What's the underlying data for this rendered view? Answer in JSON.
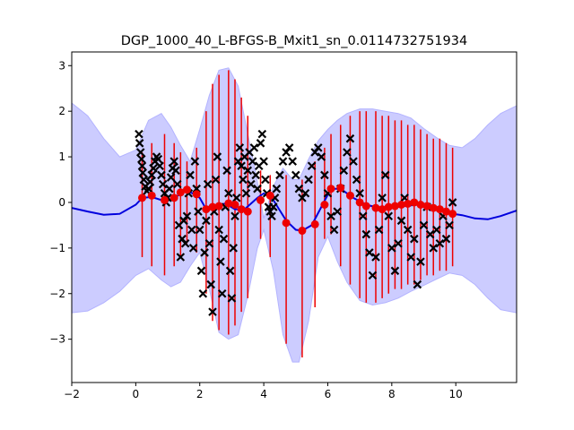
{
  "chart_data": {
    "type": "line",
    "title": "DGP_1000_40_L-BFGS-B_Mxit1_sn_0.0114732751934",
    "xlabel": "",
    "ylabel": "",
    "xlim": [
      -2,
      11.9
    ],
    "ylim": [
      -3.95,
      3.3
    ],
    "xticks": [
      -2,
      0,
      2,
      4,
      6,
      8,
      10
    ],
    "yticks": [
      -3,
      -2,
      -1,
      0,
      1,
      2,
      3
    ],
    "grid": false,
    "colors": {
      "band_fill": "#ccccff",
      "band_edge": "#b3b3ff",
      "mean_line": "#0000dd",
      "error_bars": "#ee0000",
      "inducing_points": "#ee0000",
      "observations": "#000000"
    },
    "series": [
      {
        "role": "predictive-mean",
        "x": [
          -2.0,
          -1.5,
          -1.0,
          -0.5,
          0.0,
          0.2,
          0.5,
          0.9,
          1.2,
          1.6,
          2.0,
          2.2,
          2.5,
          2.8,
          3.1,
          3.4,
          3.8,
          4.0,
          4.3,
          4.7,
          5.0,
          5.2,
          5.5,
          5.8,
          6.1,
          6.4,
          6.8,
          7.2,
          7.6,
          8.0,
          8.4,
          8.8,
          9.2,
          9.6,
          9.9,
          10.2,
          10.6,
          11.0,
          11.4,
          11.9
        ],
        "y": [
          -0.12,
          -0.2,
          -0.27,
          -0.25,
          -0.05,
          0.1,
          0.12,
          0.03,
          0.1,
          0.27,
          0.1,
          -0.15,
          -0.1,
          -0.02,
          -0.15,
          -0.15,
          0.1,
          0.2,
          0.05,
          -0.4,
          -0.6,
          -0.62,
          -0.5,
          -0.1,
          0.3,
          0.3,
          0.1,
          -0.05,
          -0.12,
          -0.12,
          -0.08,
          -0.05,
          -0.1,
          -0.2,
          -0.25,
          -0.28,
          -0.35,
          -0.37,
          -0.3,
          -0.18
        ]
      },
      {
        "role": "confidence-band",
        "x": [
          -2.0,
          -1.5,
          -1.0,
          -0.5,
          0.0,
          0.4,
          0.8,
          1.1,
          1.4,
          1.7,
          2.0,
          2.3,
          2.6,
          2.9,
          3.2,
          3.5,
          3.8,
          4.0,
          4.3,
          4.6,
          4.9,
          5.1,
          5.4,
          5.7,
          6.0,
          6.3,
          6.6,
          7.0,
          7.4,
          7.8,
          8.2,
          8.6,
          9.0,
          9.4,
          9.8,
          10.2,
          10.6,
          11.0,
          11.4,
          11.9
        ],
        "upper": [
          2.18,
          1.9,
          1.4,
          1.0,
          1.15,
          1.8,
          1.95,
          1.65,
          1.25,
          0.9,
          1.6,
          2.35,
          2.9,
          2.95,
          2.55,
          1.5,
          0.45,
          -0.35,
          0.35,
          0.75,
          0.5,
          0.5,
          0.95,
          1.35,
          1.6,
          1.8,
          1.95,
          2.05,
          2.05,
          2.0,
          1.95,
          1.85,
          1.62,
          1.42,
          1.25,
          1.2,
          1.4,
          1.7,
          1.95,
          2.12
        ],
        "lower": [
          -2.42,
          -2.38,
          -2.2,
          -1.95,
          -1.6,
          -1.45,
          -1.7,
          -1.85,
          -1.75,
          -1.4,
          -1.1,
          -1.9,
          -2.85,
          -3.0,
          -2.9,
          -2.05,
          -1.0,
          -0.6,
          -1.5,
          -2.9,
          -3.5,
          -3.5,
          -2.6,
          -1.2,
          -0.75,
          -1.3,
          -1.75,
          -2.15,
          -2.25,
          -2.2,
          -2.1,
          -1.95,
          -1.82,
          -1.68,
          -1.55,
          -1.6,
          -1.8,
          -2.1,
          -2.35,
          -2.42
        ]
      },
      {
        "role": "inducing-points-with-error-bars",
        "x": [
          0.2,
          0.5,
          0.9,
          1.2,
          1.4,
          1.6,
          1.9,
          2.2,
          2.4,
          2.6,
          2.9,
          3.1,
          3.3,
          3.5,
          3.9,
          4.2,
          4.7,
          5.2,
          5.6,
          5.9,
          6.1,
          6.4,
          6.7,
          7.0,
          7.2,
          7.5,
          7.7,
          7.9,
          8.1,
          8.3,
          8.5,
          8.7,
          8.9,
          9.1,
          9.3,
          9.5,
          9.7,
          9.9
        ],
        "y": [
          0.1,
          0.15,
          0.05,
          0.1,
          0.22,
          0.28,
          0.18,
          -0.15,
          -0.1,
          -0.08,
          -0.02,
          -0.05,
          -0.15,
          -0.2,
          0.05,
          0.15,
          -0.45,
          -0.62,
          -0.48,
          -0.05,
          0.3,
          0.32,
          0.15,
          0.0,
          -0.08,
          -0.12,
          -0.15,
          -0.1,
          -0.08,
          -0.05,
          -0.03,
          0.0,
          -0.05,
          -0.08,
          -0.12,
          -0.15,
          -0.2,
          -0.25
        ],
        "err_low": [
          -1.2,
          -1.4,
          -1.6,
          -1.4,
          -1.2,
          -0.9,
          -1.1,
          -2.0,
          -2.6,
          -2.8,
          -2.9,
          -2.7,
          -2.4,
          -2.1,
          -0.8,
          -1.2,
          -3.1,
          -3.4,
          -2.3,
          -0.8,
          -0.7,
          -1.4,
          -1.8,
          -2.1,
          -2.2,
          -2.2,
          -2.1,
          -2.0,
          -1.9,
          -1.9,
          -1.8,
          -1.8,
          -1.7,
          -1.6,
          -1.6,
          -1.5,
          -1.5,
          -1.4
        ],
        "err_high": [
          1.1,
          1.3,
          1.5,
          1.3,
          1.1,
          0.9,
          1.2,
          2.0,
          2.6,
          2.8,
          2.9,
          2.7,
          2.3,
          1.9,
          0.7,
          0.6,
          0.6,
          0.5,
          0.9,
          1.2,
          1.5,
          1.7,
          1.9,
          2.0,
          2.0,
          2.0,
          1.9,
          1.9,
          1.8,
          1.8,
          1.7,
          1.7,
          1.6,
          1.5,
          1.4,
          1.4,
          1.3,
          1.2
        ]
      },
      {
        "role": "observations",
        "x": [
          0.1,
          0.12,
          0.15,
          0.18,
          0.2,
          0.22,
          0.25,
          0.3,
          0.35,
          0.4,
          0.45,
          0.5,
          0.55,
          0.6,
          0.65,
          0.7,
          0.75,
          0.8,
          0.85,
          0.9,
          0.95,
          1.0,
          1.05,
          1.1,
          1.15,
          1.2,
          1.25,
          1.3,
          1.35,
          1.4,
          1.45,
          1.5,
          1.55,
          1.6,
          1.65,
          1.7,
          1.75,
          1.8,
          1.85,
          1.9,
          1.95,
          2.0,
          2.05,
          2.1,
          2.15,
          2.2,
          2.25,
          2.3,
          2.35,
          2.4,
          2.45,
          2.5,
          2.55,
          2.6,
          2.65,
          2.7,
          2.75,
          2.8,
          2.85,
          2.9,
          2.95,
          3.0,
          3.05,
          3.1,
          3.15,
          3.2,
          3.25,
          3.3,
          3.35,
          3.4,
          3.45,
          3.5,
          3.55,
          3.6,
          3.65,
          3.7,
          3.75,
          3.8,
          3.85,
          3.9,
          3.95,
          4.0,
          4.05,
          4.1,
          4.15,
          4.2,
          4.25,
          4.3,
          4.35,
          4.4,
          4.5,
          4.6,
          4.7,
          4.8,
          4.9,
          5.0,
          5.1,
          5.2,
          5.3,
          5.4,
          5.5,
          5.6,
          5.7,
          5.8,
          5.9,
          6.0,
          6.1,
          6.2,
          6.3,
          6.4,
          6.5,
          6.6,
          6.7,
          6.8,
          6.9,
          7.0,
          7.1,
          7.2,
          7.3,
          7.4,
          7.5,
          7.6,
          7.7,
          7.8,
          7.9,
          8.0,
          8.1,
          8.2,
          8.3,
          8.4,
          8.5,
          8.6,
          8.7,
          8.8,
          8.9,
          9.0,
          9.1,
          9.2,
          9.3,
          9.4,
          9.5,
          9.6,
          9.7,
          9.8,
          9.9
        ],
        "y": [
          1.5,
          1.3,
          1.1,
          0.95,
          0.8,
          0.65,
          0.5,
          0.35,
          0.25,
          0.3,
          0.45,
          0.6,
          0.75,
          0.9,
          1.0,
          0.95,
          0.8,
          0.6,
          0.4,
          0.2,
          0.0,
          0.1,
          0.3,
          0.55,
          0.75,
          0.9,
          0.7,
          0.4,
          -0.5,
          -1.2,
          -0.8,
          -0.4,
          -0.9,
          -0.3,
          0.2,
          0.6,
          -0.6,
          -1.0,
          0.9,
          0.3,
          -0.2,
          -0.6,
          -1.5,
          -2.0,
          -1.1,
          -0.4,
          0.4,
          -0.9,
          -1.8,
          -2.4,
          -0.2,
          0.5,
          1.0,
          -0.6,
          -1.3,
          -2.0,
          -0.8,
          -0.1,
          0.7,
          0.2,
          -1.5,
          -2.1,
          -1.0,
          -0.3,
          0.1,
          0.9,
          1.2,
          0.8,
          0.5,
          1.0,
          0.2,
          0.7,
          1.1,
          0.4,
          0.9,
          1.2,
          0.6,
          0.3,
          0.8,
          1.3,
          1.5,
          0.9,
          0.5,
          0.2,
          -0.1,
          -0.2,
          -0.3,
          -0.1,
          0.1,
          0.3,
          0.6,
          0.9,
          1.1,
          1.2,
          0.9,
          0.6,
          0.3,
          0.1,
          0.2,
          0.5,
          0.8,
          1.1,
          1.2,
          1.0,
          0.6,
          0.2,
          -0.3,
          -0.6,
          -0.2,
          0.3,
          0.7,
          1.1,
          1.4,
          0.9,
          0.5,
          0.2,
          -0.3,
          -0.7,
          -1.1,
          -1.6,
          -1.2,
          -0.6,
          0.1,
          0.6,
          -0.3,
          -1.0,
          -1.5,
          -0.9,
          -0.4,
          0.1,
          -0.6,
          -1.2,
          -0.8,
          -1.8,
          -1.3,
          -0.5,
          -0.1,
          -0.7,
          -1.0,
          -0.6,
          -0.9,
          -0.3,
          -0.8,
          -0.5,
          0.0
        ]
      }
    ]
  }
}
